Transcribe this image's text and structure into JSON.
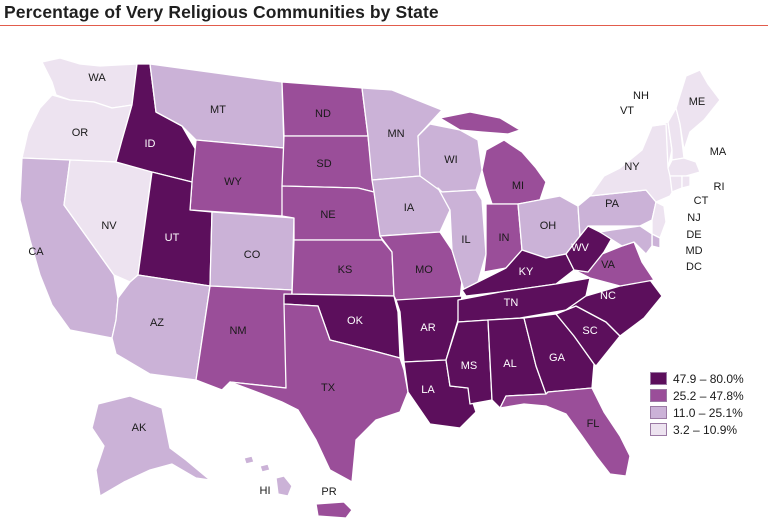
{
  "title": "Percentage of Very Religious Communities by State",
  "colors": {
    "c1": "#5c0f5c",
    "c2": "#9a4e99",
    "c3": "#cbb2d7",
    "c4": "#ede3f0"
  },
  "legend": [
    {
      "label": "47.9 – 80.0%",
      "class": "c1"
    },
    {
      "label": "25.2 – 47.8%",
      "class": "c2"
    },
    {
      "label": "11.0 – 25.1%",
      "class": "c3"
    },
    {
      "label": "3.2 – 10.9%",
      "class": "c4"
    }
  ],
  "states": {
    "WA": "c4",
    "OR": "c4",
    "CA": "c3",
    "NV": "c4",
    "ID": "c1",
    "MT": "c3",
    "WY": "c2",
    "UT": "c1",
    "AZ": "c3",
    "CO": "c3",
    "NM": "c2",
    "ND": "c2",
    "SD": "c2",
    "NE": "c2",
    "KS": "c2",
    "OK": "c1",
    "TX": "c2",
    "MN": "c3",
    "IA": "c3",
    "MO": "c2",
    "AR": "c1",
    "LA": "c1",
    "WI": "c3",
    "IL": "c3",
    "MI": "c2",
    "IN": "c2",
    "OH": "c3",
    "KY": "c1",
    "TN": "c1",
    "MS": "c1",
    "AL": "c1",
    "GA": "c1",
    "FL": "c2",
    "SC": "c1",
    "NC": "c1",
    "VA": "c2",
    "WV": "c1",
    "PA": "c3",
    "NY": "c4",
    "VT": "c4",
    "NH": "c4",
    "ME": "c4",
    "MA": "c4",
    "RI": "c4",
    "CT": "c4",
    "NJ": "c4",
    "DE": "c3",
    "MD": "c3",
    "DC": "c4",
    "AK": "c3",
    "HI": "c3",
    "PR": "c2"
  },
  "labels": {
    "WA": "WA",
    "OR": "OR",
    "CA": "CA",
    "NV": "NV",
    "ID": "ID",
    "MT": "MT",
    "WY": "WY",
    "UT": "UT",
    "AZ": "AZ",
    "CO": "CO",
    "NM": "NM",
    "ND": "ND",
    "SD": "SD",
    "NE": "NE",
    "KS": "KS",
    "OK": "OK",
    "TX": "TX",
    "MN": "MN",
    "IA": "IA",
    "MO": "MO",
    "AR": "AR",
    "LA": "LA",
    "WI": "WI",
    "IL": "IL",
    "MI": "MI",
    "IN": "IN",
    "OH": "OH",
    "KY": "KY",
    "TN": "TN",
    "MS": "MS",
    "AL": "AL",
    "GA": "GA",
    "FL": "FL",
    "SC": "SC",
    "NC": "NC",
    "VA": "VA",
    "WV": "WV",
    "PA": "PA",
    "NY": "NY",
    "VT": "VT",
    "NH": "NH",
    "ME": "ME",
    "MA": "MA",
    "RI": "RI",
    "CT": "CT",
    "NJ": "NJ",
    "DE": "DE",
    "MD": "MD",
    "DC": "DC",
    "AK": "AK",
    "HI": "HI",
    "PR": "PR"
  }
}
